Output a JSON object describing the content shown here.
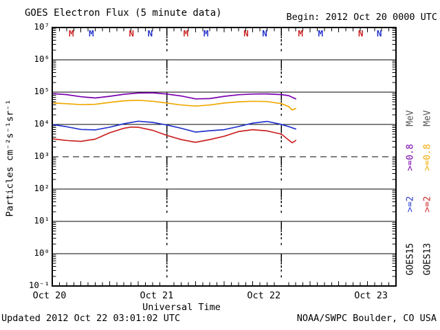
{
  "header": {
    "title": "GOES Electron Flux (5 minute data)",
    "begin_label": "Begin: 2012 Oct 20 0000 UTC"
  },
  "footer": {
    "updated": "Updated 2012 Oct 22 03:01:02 UTC",
    "source": "NOAA/SWPC Boulder, CO USA"
  },
  "legend": {
    "columns": [
      {
        "satellite": "GOES15",
        "ge2": ">=2",
        "ge08": ">=0.8",
        "unit": "MeV",
        "ge2_color": "#2233cc",
        "ge08_color": "#7a00ae"
      },
      {
        "satellite": "GOES13",
        "ge2": ">=2",
        "ge08": ">=0.8",
        "unit": "MeV",
        "ge2_color": "#cc2222",
        "ge08_color": "#f0a800"
      }
    ],
    "unit_color": "#555555",
    "satellite_color": "#000000"
  },
  "chart_data": {
    "type": "line",
    "title": "GOES Electron Flux (5 minute data)",
    "xlabel": "Universal Time",
    "ylabel": "Particles cm⁻²s⁻¹sr⁻¹",
    "begin": "2012 Oct 20 0000 UTC",
    "updated": "2012 Oct 22 03:01:02 UTC",
    "y_scale": "log",
    "ylim_exponents": [
      -1,
      7
    ],
    "y_tick_labels": [
      "10⁷",
      "10⁶",
      "10⁵",
      "10⁴",
      "10³",
      "10²",
      "10¹",
      "10⁰",
      "10⁻¹"
    ],
    "y_tick_exponents": [
      7,
      6,
      5,
      4,
      3,
      2,
      1,
      0,
      -1
    ],
    "threshold_dashed_exponent": 3,
    "x_hours_total": 72,
    "x_tick_hours": [
      0,
      24,
      48,
      72
    ],
    "x_tick_labels": [
      "Oct 20",
      "Oct 21",
      "Oct 22",
      "Oct 23"
    ],
    "day_boundary_hours": [
      24,
      48
    ],
    "grid": "decade-solid",
    "legend_position": "right-rotated",
    "axis_color": "#000000",
    "series": [
      {
        "name": "GOES15 >=0.8 MeV",
        "color": "#7a00ae",
        "points": [
          [
            0,
            90000
          ],
          [
            3,
            84000
          ],
          [
            6,
            72000
          ],
          [
            9,
            66000
          ],
          [
            12,
            74000
          ],
          [
            15,
            86000
          ],
          [
            18,
            94000
          ],
          [
            21,
            95000
          ],
          [
            24,
            87000
          ],
          [
            27,
            76000
          ],
          [
            30,
            62000
          ],
          [
            33,
            63000
          ],
          [
            36,
            74000
          ],
          [
            39,
            83000
          ],
          [
            42,
            87000
          ],
          [
            45,
            88000
          ],
          [
            48,
            84000
          ],
          [
            49.5,
            78000
          ],
          [
            51,
            62000
          ]
        ]
      },
      {
        "name": "GOES13 >=0.8 MeV",
        "color": "#f0a800",
        "points": [
          [
            0,
            46000
          ],
          [
            3,
            44000
          ],
          [
            6,
            41000
          ],
          [
            9,
            42000
          ],
          [
            12,
            48000
          ],
          [
            15,
            54000
          ],
          [
            18,
            56000
          ],
          [
            21,
            52000
          ],
          [
            24,
            46000
          ],
          [
            27,
            40000
          ],
          [
            30,
            37000
          ],
          [
            33,
            40000
          ],
          [
            36,
            46000
          ],
          [
            39,
            50000
          ],
          [
            42,
            52000
          ],
          [
            45,
            51000
          ],
          [
            48,
            44000
          ],
          [
            49.5,
            36000
          ],
          [
            50.25,
            28000
          ],
          [
            51,
            31000
          ]
        ]
      },
      {
        "name": "GOES15 >=2 MeV",
        "color": "#2233cc",
        "points": [
          [
            0,
            10000
          ],
          [
            3,
            8500
          ],
          [
            6,
            7000
          ],
          [
            9,
            6800
          ],
          [
            12,
            8200
          ],
          [
            15,
            10500
          ],
          [
            18,
            12600
          ],
          [
            21,
            11600
          ],
          [
            24,
            9600
          ],
          [
            27,
            7600
          ],
          [
            30,
            5800
          ],
          [
            33,
            6400
          ],
          [
            36,
            6900
          ],
          [
            39,
            8600
          ],
          [
            42,
            11000
          ],
          [
            45,
            12400
          ],
          [
            48,
            10000
          ],
          [
            49.5,
            8600
          ],
          [
            51,
            7200
          ]
        ]
      },
      {
        "name": "GOES13 >=2 MeV",
        "color": "#cc2222",
        "points": [
          [
            0,
            3600
          ],
          [
            3,
            3200
          ],
          [
            6,
            3000
          ],
          [
            9,
            3500
          ],
          [
            12,
            5500
          ],
          [
            15,
            7600
          ],
          [
            16.5,
            8300
          ],
          [
            18,
            8200
          ],
          [
            21,
            6600
          ],
          [
            24,
            4600
          ],
          [
            27,
            3400
          ],
          [
            30,
            2800
          ],
          [
            33,
            3400
          ],
          [
            36,
            4300
          ],
          [
            39,
            6000
          ],
          [
            42,
            6900
          ],
          [
            45,
            6300
          ],
          [
            48,
            5000
          ],
          [
            49.5,
            3300
          ],
          [
            50.25,
            2700
          ],
          [
            51,
            3200
          ]
        ]
      }
    ],
    "satellite_markers": [
      {
        "label": "M",
        "color": "#cc2222",
        "hour": 4.0
      },
      {
        "label": "M",
        "color": "#2233cc",
        "hour": 8.2
      },
      {
        "label": "N",
        "color": "#cc2222",
        "hour": 16.6
      },
      {
        "label": "N",
        "color": "#2233cc",
        "hour": 20.5
      },
      {
        "label": "M",
        "color": "#cc2222",
        "hour": 28.0
      },
      {
        "label": "M",
        "color": "#2233cc",
        "hour": 32.2
      },
      {
        "label": "N",
        "color": "#cc2222",
        "hour": 40.6
      },
      {
        "label": "N",
        "color": "#2233cc",
        "hour": 44.5
      },
      {
        "label": "M",
        "color": "#cc2222",
        "hour": 52.0
      },
      {
        "label": "M",
        "color": "#2233cc",
        "hour": 56.2
      },
      {
        "label": "N",
        "color": "#cc2222",
        "hour": 64.6
      },
      {
        "label": "N",
        "color": "#2233cc",
        "hour": 68.5
      }
    ]
  }
}
